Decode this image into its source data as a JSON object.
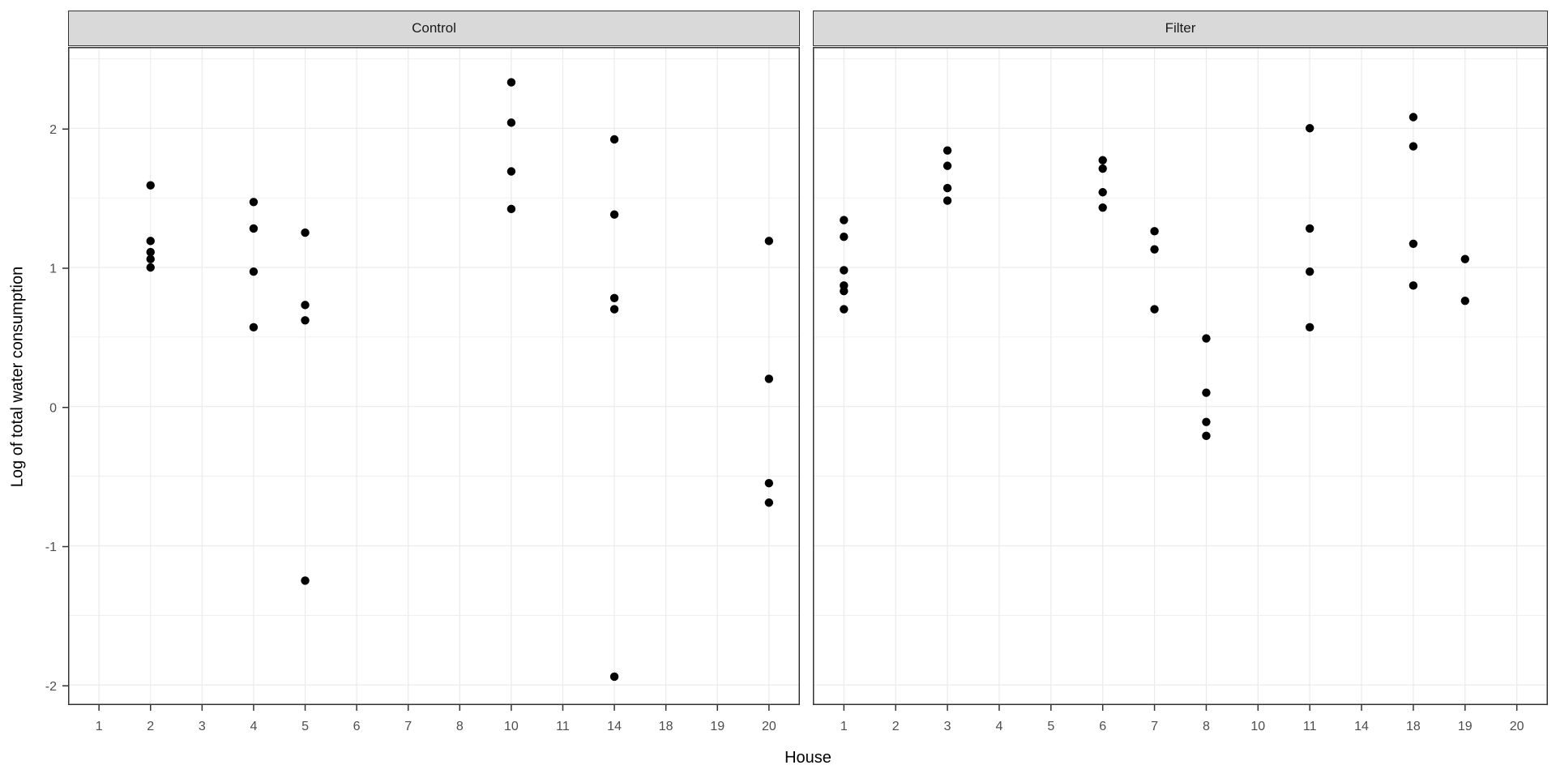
{
  "chart_data": {
    "type": "scatter",
    "title": "",
    "xlabel": "House",
    "ylabel": "Log of total water consumption",
    "x_categories": [
      "1",
      "2",
      "3",
      "4",
      "5",
      "6",
      "7",
      "8",
      "10",
      "11",
      "14",
      "18",
      "19",
      "20"
    ],
    "y_major_ticks": [
      2,
      1,
      0,
      -1,
      -2
    ],
    "y_minor_ticks": [
      2.5,
      1.5,
      0.5,
      -0.5,
      -1.5
    ],
    "ylim": [
      -2.14,
      2.58
    ],
    "grid": "on",
    "legend": "none",
    "facets": [
      {
        "label": "Control",
        "series": [
          {
            "house": "2",
            "values": [
              1.59,
              1.19,
              1.11,
              1.06,
              1.0
            ]
          },
          {
            "house": "4",
            "values": [
              1.47,
              1.28,
              0.97,
              0.57
            ]
          },
          {
            "house": "5",
            "values": [
              1.25,
              0.73,
              0.62,
              -1.25
            ]
          },
          {
            "house": "10",
            "values": [
              2.33,
              2.04,
              1.69,
              1.42
            ]
          },
          {
            "house": "14",
            "values": [
              1.92,
              1.38,
              0.78,
              0.7,
              -1.94
            ]
          },
          {
            "house": "20",
            "values": [
              1.19,
              0.2,
              -0.55,
              -0.69
            ]
          }
        ]
      },
      {
        "label": "Filter",
        "series": [
          {
            "house": "1",
            "values": [
              1.34,
              1.22,
              0.98,
              0.87,
              0.83,
              0.7
            ]
          },
          {
            "house": "3",
            "values": [
              1.84,
              1.73,
              1.57,
              1.48
            ]
          },
          {
            "house": "6",
            "values": [
              1.77,
              1.71,
              1.54,
              1.43
            ]
          },
          {
            "house": "7",
            "values": [
              1.26,
              1.13,
              0.7
            ]
          },
          {
            "house": "8",
            "values": [
              0.49,
              0.1,
              -0.11,
              -0.21
            ]
          },
          {
            "house": "11",
            "values": [
              2.0,
              1.28,
              0.97,
              0.57
            ]
          },
          {
            "house": "18",
            "values": [
              2.08,
              1.87,
              1.17,
              0.87
            ]
          },
          {
            "house": "19",
            "values": [
              1.06,
              0.76
            ]
          }
        ]
      }
    ],
    "colors": {
      "background": "#ffffff",
      "strip_fill": "#d9d9d9",
      "strip_text": "#1a1a1a",
      "grid": "#ebebeb",
      "panel_border": "#333333",
      "tick": "#333333",
      "axis_text": "#4d4d4d",
      "axis_title": "#000000",
      "point": "#000000"
    }
  }
}
